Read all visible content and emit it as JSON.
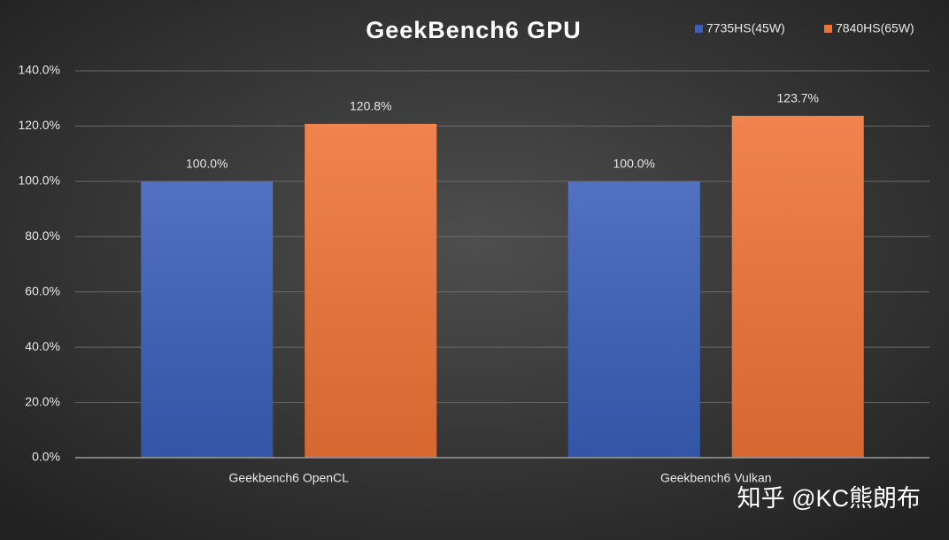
{
  "chart_data": {
    "type": "bar",
    "title": "GeekBench6 GPU",
    "categories": [
      "Geekbench6 OpenCL",
      "Geekbench6 Vulkan"
    ],
    "series": [
      {
        "name": "7735HS(45W)",
        "color": "#3a5fb8",
        "values": [
          100.0,
          100.0
        ],
        "value_labels": [
          "100.0%",
          "100.0%"
        ]
      },
      {
        "name": "7840HS(65W)",
        "color": "#ee7337",
        "values": [
          120.8,
          123.7
        ],
        "value_labels": [
          "120.8%",
          "123.7%"
        ]
      }
    ],
    "ylim": [
      0,
      140
    ],
    "yticks": [
      {
        "value": 0,
        "label": "0.0%"
      },
      {
        "value": 20,
        "label": "20.0%"
      },
      {
        "value": 40,
        "label": "40.0%"
      },
      {
        "value": 60,
        "label": "60.0%"
      },
      {
        "value": 80,
        "label": "80.0%"
      },
      {
        "value": 100,
        "label": "100.0%"
      },
      {
        "value": 120,
        "label": "120.0%"
      },
      {
        "value": 140,
        "label": "140.0%"
      }
    ],
    "grid": true,
    "legend": "top-right",
    "watermark": "知乎 @KC熊朗布"
  }
}
